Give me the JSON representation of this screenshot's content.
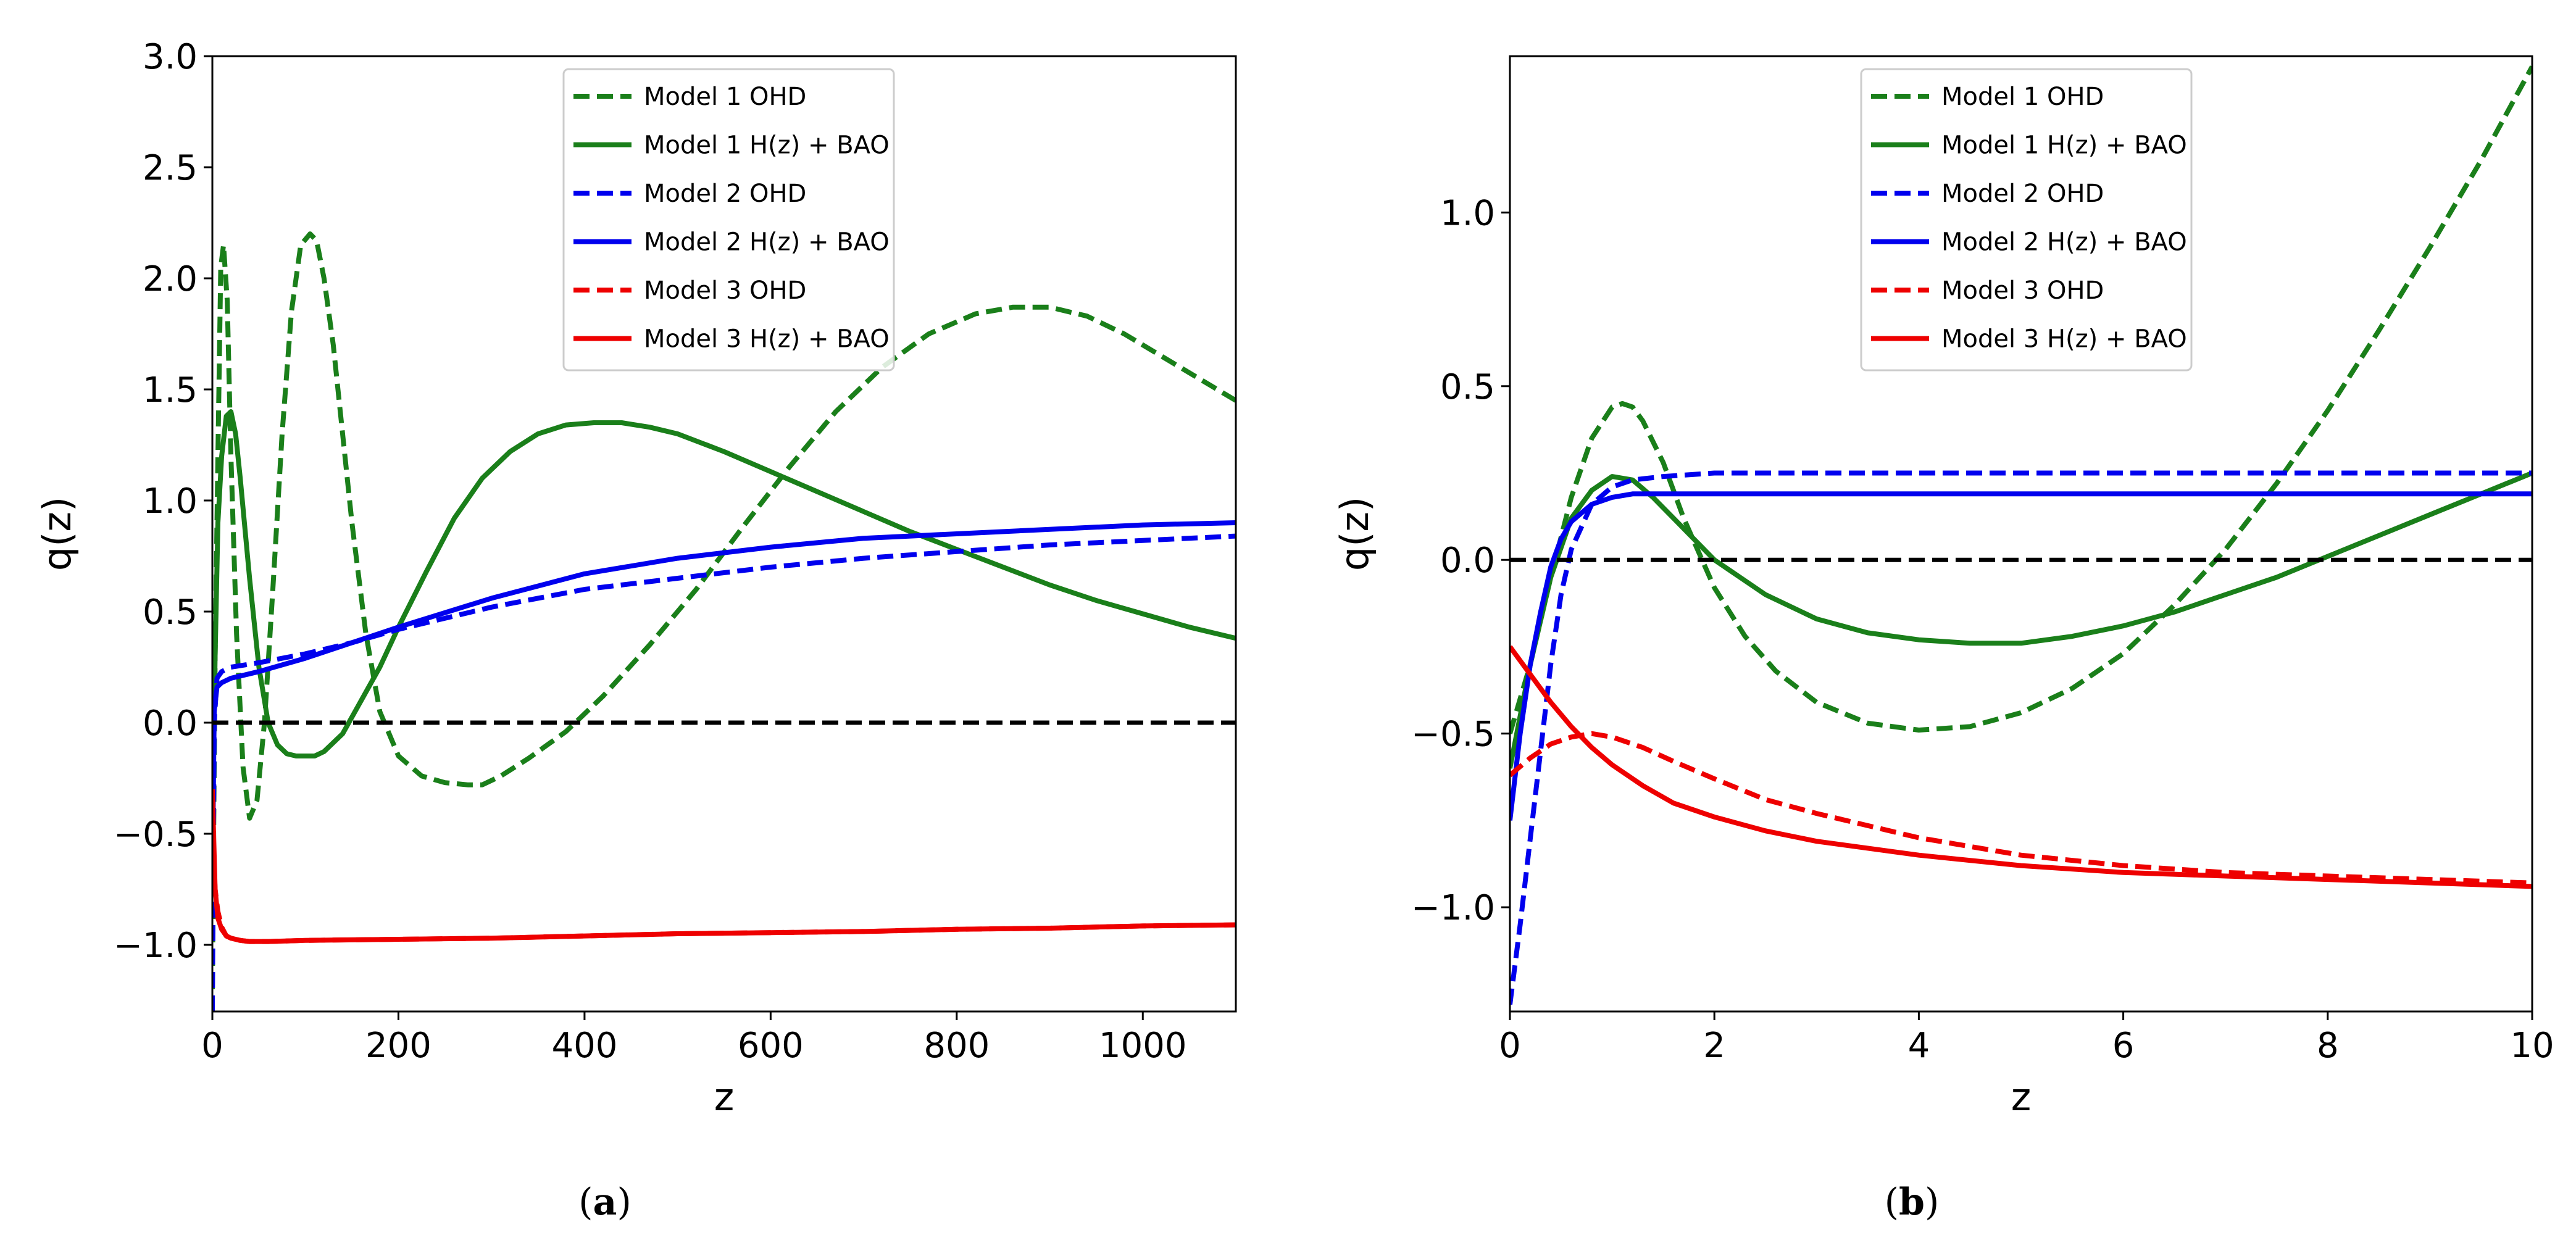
{
  "figure": {
    "panels": [
      {
        "caption_open": "(",
        "caption_letter": "a",
        "caption_close": ")"
      },
      {
        "caption_open": "(",
        "caption_letter": "b",
        "caption_close": ")"
      }
    ]
  },
  "colors": {
    "model1": "#1a7f1a",
    "model2": "#0000ee",
    "model3": "#ee0000",
    "reference": "#000000"
  },
  "chart_data": [
    {
      "type": "line",
      "xlabel": "z",
      "ylabel": "q(z)",
      "xlim": [
        0,
        1100
      ],
      "ylim": [
        -1.3,
        3.0
      ],
      "x_ticks": [
        0,
        200,
        400,
        600,
        800,
        1000
      ],
      "x_tick_labels": [
        "0",
        "200",
        "400",
        "600",
        "800",
        "1000"
      ],
      "y_ticks": [
        -1.0,
        -0.5,
        0.0,
        0.5,
        1.0,
        1.5,
        2.0,
        2.5,
        3.0
      ],
      "y_tick_labels": [
        "−1.0",
        "−0.5",
        "0.0",
        "0.5",
        "1.0",
        "1.5",
        "2.0",
        "2.5",
        "3.0"
      ],
      "legend_position": "top-center",
      "reference_line": {
        "y": 0,
        "style": "dashed"
      },
      "series": [
        {
          "name": "Model 1 OHD",
          "color_key": "model1",
          "dashed": true,
          "x": [
            0,
            3,
            6,
            9,
            12,
            16,
            20,
            26,
            33,
            40,
            48,
            56,
            65,
            75,
            85,
            95,
            105,
            112,
            120,
            130,
            140,
            150,
            165,
            180,
            200,
            225,
            250,
            275,
            290,
            310,
            340,
            380,
            420,
            470,
            520,
            570,
            620,
            670,
            720,
            770,
            820,
            860,
            900,
            940,
            980,
            1020,
            1060,
            1100
          ],
          "y": [
            -1.2,
            0.3,
            1.2,
            2.05,
            2.15,
            1.9,
            1.2,
            0.4,
            -0.2,
            -0.43,
            -0.35,
            0.0,
            0.6,
            1.3,
            1.85,
            2.15,
            2.2,
            2.17,
            2.0,
            1.7,
            1.3,
            0.9,
            0.4,
            0.05,
            -0.15,
            -0.24,
            -0.27,
            -0.28,
            -0.28,
            -0.24,
            -0.16,
            -0.04,
            0.12,
            0.35,
            0.6,
            0.88,
            1.15,
            1.4,
            1.6,
            1.75,
            1.84,
            1.87,
            1.87,
            1.83,
            1.75,
            1.65,
            1.55,
            1.45
          ]
        },
        {
          "name": "Model 1 H(z) + BAO",
          "color_key": "model1",
          "dashed": false,
          "x": [
            0,
            3,
            6,
            10,
            15,
            20,
            25,
            30,
            40,
            50,
            60,
            70,
            80,
            90,
            100,
            110,
            120,
            140,
            160,
            180,
            200,
            230,
            260,
            290,
            320,
            350,
            380,
            410,
            440,
            470,
            500,
            550,
            600,
            650,
            700,
            750,
            800,
            850,
            900,
            950,
            1000,
            1050,
            1100
          ],
          "y": [
            -0.5,
            0.3,
            0.9,
            1.2,
            1.38,
            1.4,
            1.3,
            1.1,
            0.65,
            0.25,
            0.0,
            -0.1,
            -0.14,
            -0.15,
            -0.15,
            -0.15,
            -0.13,
            -0.05,
            0.1,
            0.25,
            0.43,
            0.68,
            0.92,
            1.1,
            1.22,
            1.3,
            1.34,
            1.35,
            1.35,
            1.33,
            1.3,
            1.22,
            1.13,
            1.04,
            0.95,
            0.86,
            0.78,
            0.7,
            0.62,
            0.55,
            0.49,
            0.43,
            0.38
          ]
        },
        {
          "name": "Model 2 OHD",
          "color_key": "model2",
          "dashed": true,
          "x": [
            0,
            2,
            5,
            10,
            20,
            50,
            100,
            150,
            200,
            300,
            400,
            500,
            600,
            700,
            800,
            900,
            1000,
            1100
          ],
          "y": [
            -1.3,
            0.0,
            0.2,
            0.23,
            0.25,
            0.27,
            0.31,
            0.36,
            0.42,
            0.52,
            0.6,
            0.65,
            0.7,
            0.74,
            0.77,
            0.8,
            0.82,
            0.84
          ]
        },
        {
          "name": "Model 2 H(z) + BAO",
          "color_key": "model2",
          "dashed": false,
          "x": [
            0,
            2,
            5,
            10,
            20,
            50,
            100,
            150,
            200,
            300,
            400,
            500,
            600,
            700,
            800,
            900,
            1000,
            1100
          ],
          "y": [
            -0.75,
            0.05,
            0.16,
            0.18,
            0.2,
            0.23,
            0.29,
            0.36,
            0.43,
            0.56,
            0.67,
            0.74,
            0.79,
            0.83,
            0.85,
            0.87,
            0.89,
            0.9
          ]
        },
        {
          "name": "Model 3 OHD",
          "color_key": "model3",
          "dashed": true,
          "x": [
            0,
            3,
            6,
            10,
            15,
            20,
            30,
            40,
            60,
            100,
            200,
            300,
            400,
            500,
            600,
            700,
            800,
            900,
            1000,
            1100
          ],
          "y": [
            -0.5,
            -0.75,
            -0.85,
            -0.92,
            -0.96,
            -0.97,
            -0.98,
            -0.985,
            -0.985,
            -0.98,
            -0.975,
            -0.97,
            -0.96,
            -0.95,
            -0.945,
            -0.94,
            -0.93,
            -0.925,
            -0.915,
            -0.91
          ]
        },
        {
          "name": "Model 3 H(z) + BAO",
          "color_key": "model3",
          "dashed": false,
          "x": [
            0,
            3,
            6,
            10,
            15,
            20,
            30,
            40,
            60,
            100,
            200,
            300,
            400,
            500,
            600,
            700,
            800,
            900,
            1000,
            1100
          ],
          "y": [
            -0.3,
            -0.75,
            -0.88,
            -0.93,
            -0.96,
            -0.97,
            -0.98,
            -0.985,
            -0.985,
            -0.98,
            -0.975,
            -0.97,
            -0.96,
            -0.95,
            -0.945,
            -0.94,
            -0.93,
            -0.925,
            -0.915,
            -0.91
          ]
        }
      ]
    },
    {
      "type": "line",
      "xlabel": "z",
      "ylabel": "q(z)",
      "xlim": [
        0,
        10
      ],
      "ylim": [
        -1.3,
        1.45
      ],
      "x_ticks": [
        0,
        2,
        4,
        6,
        8,
        10
      ],
      "x_tick_labels": [
        "0",
        "2",
        "4",
        "6",
        "8",
        "10"
      ],
      "y_ticks": [
        -1.0,
        -0.5,
        0.0,
        0.5,
        1.0
      ],
      "y_tick_labels": [
        "−1.0",
        "−0.5",
        "0.0",
        "0.5",
        "1.0"
      ],
      "legend_position": "top-center",
      "reference_line": {
        "y": 0,
        "style": "dashed"
      },
      "series": [
        {
          "name": "Model 1 OHD",
          "color_key": "model1",
          "dashed": true,
          "x": [
            0,
            0.2,
            0.4,
            0.6,
            0.8,
            1.0,
            1.1,
            1.2,
            1.3,
            1.5,
            1.7,
            2.0,
            2.3,
            2.6,
            3.0,
            3.5,
            4.0,
            4.5,
            5.0,
            5.5,
            6.0,
            6.5,
            7.0,
            7.5,
            8.0,
            8.5,
            9.0,
            9.5,
            10.0
          ],
          "y": [
            -0.5,
            -0.3,
            -0.05,
            0.18,
            0.35,
            0.44,
            0.45,
            0.44,
            0.4,
            0.28,
            0.12,
            -0.08,
            -0.22,
            -0.32,
            -0.41,
            -0.47,
            -0.49,
            -0.48,
            -0.44,
            -0.37,
            -0.27,
            -0.13,
            0.03,
            0.22,
            0.43,
            0.66,
            0.9,
            1.15,
            1.42
          ]
        },
        {
          "name": "Model 1 H(z) + BAO",
          "color_key": "model1",
          "dashed": false,
          "x": [
            0,
            0.2,
            0.4,
            0.6,
            0.8,
            1.0,
            1.2,
            1.4,
            1.6,
            1.8,
            2.0,
            2.5,
            3.0,
            3.5,
            4.0,
            4.5,
            5.0,
            5.5,
            6.0,
            6.5,
            7.0,
            7.5,
            8.0,
            8.5,
            9.0,
            9.5,
            10.0
          ],
          "y": [
            -0.6,
            -0.3,
            -0.05,
            0.12,
            0.2,
            0.24,
            0.23,
            0.18,
            0.12,
            0.06,
            0.0,
            -0.1,
            -0.17,
            -0.21,
            -0.23,
            -0.24,
            -0.24,
            -0.22,
            -0.19,
            -0.15,
            -0.1,
            -0.05,
            0.01,
            0.07,
            0.13,
            0.19,
            0.25
          ]
        },
        {
          "name": "Model 2 OHD",
          "color_key": "model2",
          "dashed": true,
          "x": [
            0,
            0.1,
            0.2,
            0.3,
            0.4,
            0.5,
            0.6,
            0.8,
            1.0,
            1.2,
            1.5,
            2.0,
            3.0,
            4.0,
            6.0,
            8.0,
            10.0
          ],
          "y": [
            -1.28,
            -1.05,
            -0.8,
            -0.55,
            -0.3,
            -0.1,
            0.03,
            0.16,
            0.21,
            0.23,
            0.24,
            0.25,
            0.25,
            0.25,
            0.25,
            0.25,
            0.25
          ]
        },
        {
          "name": "Model 2 H(z) + BAO",
          "color_key": "model2",
          "dashed": false,
          "x": [
            0,
            0.1,
            0.2,
            0.3,
            0.4,
            0.5,
            0.6,
            0.8,
            1.0,
            1.2,
            1.5,
            2.0,
            3.0,
            4.0,
            6.0,
            8.0,
            10.0
          ],
          "y": [
            -0.75,
            -0.5,
            -0.3,
            -0.15,
            -0.02,
            0.06,
            0.11,
            0.16,
            0.18,
            0.19,
            0.19,
            0.19,
            0.19,
            0.19,
            0.19,
            0.19,
            0.19
          ]
        },
        {
          "name": "Model 3 OHD",
          "color_key": "model3",
          "dashed": true,
          "x": [
            0,
            0.2,
            0.4,
            0.6,
            0.8,
            1.0,
            1.3,
            1.6,
            2.0,
            2.5,
            3.0,
            4.0,
            5.0,
            6.0,
            7.0,
            8.0,
            9.0,
            10.0
          ],
          "y": [
            -0.62,
            -0.57,
            -0.53,
            -0.51,
            -0.5,
            -0.51,
            -0.54,
            -0.58,
            -0.63,
            -0.69,
            -0.73,
            -0.8,
            -0.85,
            -0.88,
            -0.9,
            -0.91,
            -0.92,
            -0.93
          ]
        },
        {
          "name": "Model 3 H(z) + BAO",
          "color_key": "model3",
          "dashed": false,
          "x": [
            0,
            0.2,
            0.4,
            0.6,
            0.8,
            1.0,
            1.3,
            1.6,
            2.0,
            2.5,
            3.0,
            4.0,
            5.0,
            6.0,
            7.0,
            8.0,
            9.0,
            10.0
          ],
          "y": [
            -0.25,
            -0.33,
            -0.41,
            -0.48,
            -0.54,
            -0.59,
            -0.65,
            -0.7,
            -0.74,
            -0.78,
            -0.81,
            -0.85,
            -0.88,
            -0.9,
            -0.91,
            -0.92,
            -0.93,
            -0.94
          ]
        }
      ]
    }
  ]
}
